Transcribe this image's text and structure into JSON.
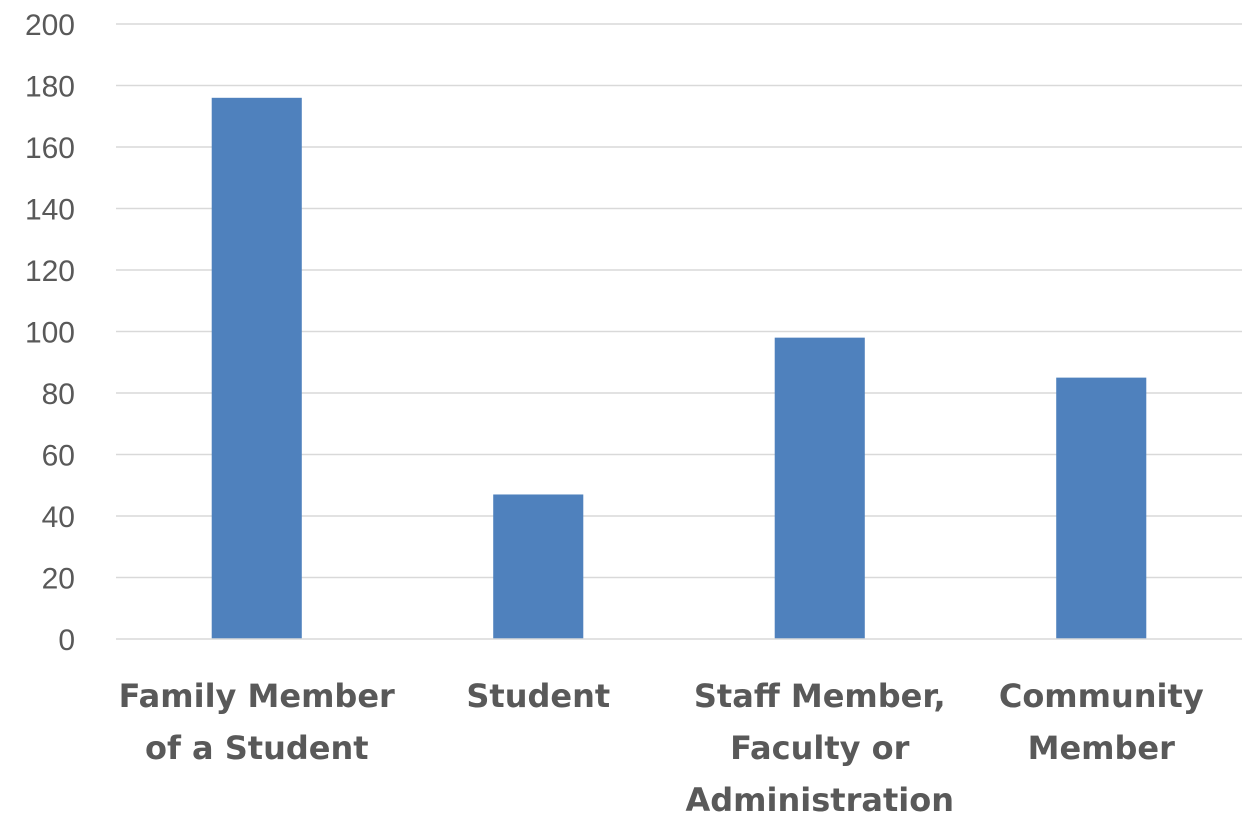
{
  "chart_data": {
    "type": "bar",
    "title": "",
    "xlabel": "",
    "ylabel": "",
    "categories": [
      [
        "Family Member",
        "of a Student"
      ],
      [
        "Student"
      ],
      [
        "Staff Member,",
        "Faculty or",
        "Administration"
      ],
      [
        "Community",
        "Member"
      ]
    ],
    "values": [
      176,
      47,
      98,
      85
    ],
    "ylim": [
      0,
      200
    ],
    "yticks": [
      0,
      20,
      40,
      60,
      80,
      100,
      120,
      140,
      160,
      180,
      200
    ],
    "grid": true,
    "legend": "none",
    "bar_color": "#4f81bd",
    "grid_color": "#d9d9d9",
    "text_color": "#595959"
  }
}
